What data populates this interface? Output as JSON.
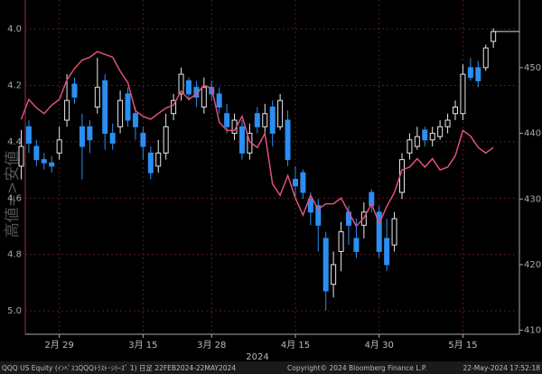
{
  "chart_data": {
    "type": "candlestick",
    "categories": [
      null,
      null,
      null,
      null,
      null,
      "2月 29",
      null,
      null,
      null,
      null,
      null,
      null,
      null,
      null,
      null,
      null,
      "3月 15",
      null,
      null,
      null,
      null,
      null,
      null,
      null,
      null,
      "3月 28",
      null,
      null,
      null,
      null,
      null,
      null,
      null,
      null,
      null,
      null,
      "4月 15",
      null,
      null,
      null,
      null,
      null,
      null,
      null,
      null,
      null,
      null,
      "4月 30",
      null,
      null,
      null,
      null,
      null,
      null,
      null,
      null,
      null,
      null,
      "5月 15",
      null,
      null,
      null,
      null
    ],
    "ohlc": {
      "axis": "y2",
      "up_color": "#e8e8e8",
      "down_color": "#2b8ef0",
      "open": [
        435,
        441,
        438,
        436,
        435.5,
        437,
        442,
        447.5,
        441,
        441,
        444,
        448,
        440,
        441,
        446,
        443,
        440,
        437,
        435,
        437,
        443,
        446,
        448,
        447,
        444,
        447,
        446,
        443,
        440,
        441,
        437,
        443,
        441,
        444,
        441,
        442,
        433,
        434,
        430,
        429,
        424,
        417,
        422,
        428,
        424,
        426,
        431,
        428,
        424,
        423,
        431,
        437,
        438,
        440.5,
        439,
        439.5,
        441,
        443,
        443,
        450,
        450,
        450,
        454
      ],
      "high": [
        440.5,
        442,
        439,
        437,
        436.5,
        441,
        449,
        448.5,
        443,
        442,
        451.5,
        449,
        441.5,
        446.5,
        447,
        444,
        441,
        438,
        439,
        443,
        446,
        450,
        448.5,
        448,
        448.5,
        448,
        447,
        444.5,
        443,
        442,
        441.5,
        444,
        444.5,
        445,
        446,
        443.5,
        435,
        434.5,
        431,
        430,
        425,
        422,
        426.5,
        429,
        427,
        429.5,
        431.5,
        429,
        427,
        428,
        437,
        440,
        441,
        441,
        441,
        442,
        443,
        445,
        450.5,
        451.5,
        451,
        453.5,
        456
      ],
      "low": [
        433,
        437,
        435,
        434.5,
        434,
        436,
        441,
        444.5,
        433,
        437,
        443,
        437.5,
        437.5,
        440,
        441,
        439,
        436,
        433,
        434,
        436,
        442,
        445,
        445,
        444,
        443,
        445,
        443,
        440,
        439,
        436,
        436,
        440,
        440,
        438,
        440.5,
        435,
        430,
        430,
        426,
        422,
        413,
        415,
        419,
        423,
        421,
        424,
        428,
        421,
        419,
        422,
        430,
        436,
        437.5,
        438,
        438,
        439,
        440,
        442,
        442,
        448,
        447,
        449.5,
        453
      ],
      "close": [
        438,
        438.5,
        436,
        435.5,
        435,
        439,
        445,
        445.5,
        438,
        439,
        447,
        440,
        438.5,
        445,
        442,
        441,
        438,
        434,
        437,
        441,
        445,
        449,
        446,
        445.5,
        447,
        446,
        444,
        441,
        442,
        437,
        440,
        441,
        443,
        440,
        445,
        436,
        432,
        431,
        428,
        426,
        416,
        420,
        425,
        426,
        422,
        428,
        429,
        422,
        420,
        427,
        436,
        439,
        439.5,
        439,
        440,
        441,
        442,
        444,
        449,
        448.5,
        448,
        453,
        455.5
      ]
    },
    "line": {
      "type": "line",
      "axis": "y",
      "color": "#e0507a",
      "values": [
        4.32,
        4.25,
        4.28,
        4.3,
        4.27,
        4.25,
        4.18,
        4.14,
        4.11,
        4.1,
        4.08,
        4.09,
        4.1,
        4.15,
        4.19,
        4.29,
        4.31,
        4.32,
        4.3,
        4.28,
        4.27,
        4.22,
        4.25,
        4.23,
        4.2,
        4.21,
        4.33,
        4.36,
        4.36,
        4.31,
        4.4,
        4.42,
        4.37,
        4.55,
        4.59,
        4.52,
        4.6,
        4.66,
        4.59,
        4.64,
        4.62,
        4.62,
        4.6,
        4.65,
        4.7,
        4.67,
        4.62,
        4.69,
        4.63,
        4.58,
        4.5,
        4.49,
        4.46,
        4.49,
        4.46,
        4.5,
        4.49,
        4.45,
        4.36,
        4.38,
        4.42,
        4.44,
        4.42
      ]
    },
    "ylim": [
      5.083,
      3.897
    ],
    "yticks": [
      {
        "value": 4,
        "label": "4.0"
      },
      4.2,
      4.4,
      4.6,
      4.8,
      {
        "value": 5,
        "label": "5.0"
      }
    ],
    "y2lim": [
      409.4,
      460.3
    ],
    "y2ticks": [
      410,
      420,
      430,
      440,
      450
    ],
    "ylabel": "高値=>安値",
    "xlabel": "2024",
    "grid": true,
    "footer": [
      "QQQ US Equity (ｲﾝﾍﾞｽｺQQQﾄﾗｽﾄ･ｼﾘｰｽﾞ 1) 日足 22FEB2024-22MAY2024",
      "Copyright© 2024 Bloomberg Finance L.P.",
      "22-May-2024 17:52:18"
    ]
  }
}
